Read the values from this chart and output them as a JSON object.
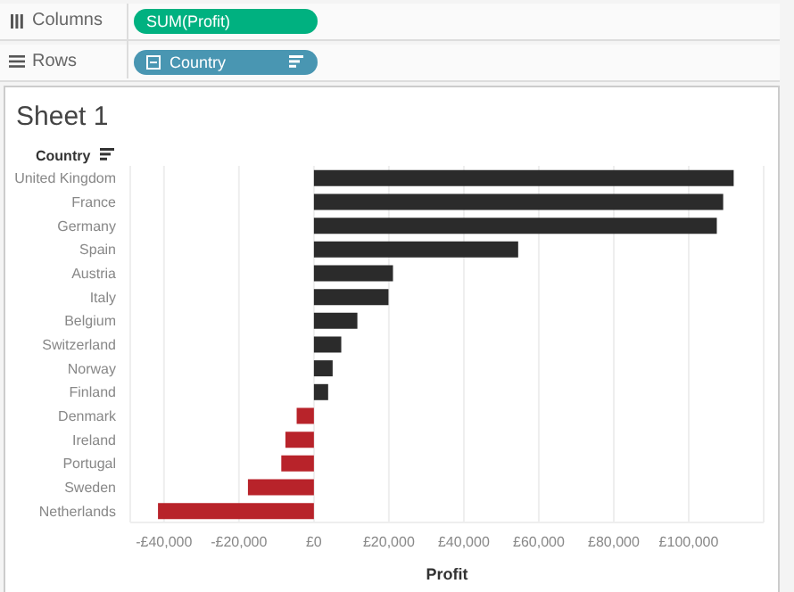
{
  "chart_data": {
    "type": "bar",
    "orientation": "horizontal",
    "title": "Sheet 1",
    "xlabel": "Profit",
    "ylabel": "Country",
    "annotations": [
      "Columns",
      "SUM(Profit)",
      "Rows",
      "Country"
    ],
    "categories": [
      "United Kingdom",
      "France",
      "Germany",
      "Spain",
      "Austria",
      "Italy",
      "Belgium",
      "Switzerland",
      "Norway",
      "Finland",
      "Denmark",
      "Ireland",
      "Portugal",
      "Sweden",
      "Netherlands"
    ],
    "values": [
      112000,
      109200,
      107500,
      54500,
      21100,
      19900,
      11600,
      7300,
      5000,
      3800,
      -4600,
      -7600,
      -8700,
      -17600,
      -41600
    ],
    "colors": [
      "#2b2b2b",
      "#2b2b2b",
      "#2b2b2b",
      "#2b2b2b",
      "#2b2b2b",
      "#2b2b2b",
      "#2b2b2b",
      "#2b2b2b",
      "#2b2b2b",
      "#2b2b2b",
      "#b8232a",
      "#b8232a",
      "#b8232a",
      "#b8232a",
      "#b8232a"
    ],
    "xlim": [
      -49000,
      120000
    ],
    "xticks": [
      {
        "value": -40000,
        "label": "-£40,000"
      },
      {
        "value": -20000,
        "label": "-£20,000"
      },
      {
        "value": 0,
        "label": "£0"
      },
      {
        "value": 20000,
        "label": "£20,000"
      },
      {
        "value": 40000,
        "label": "£40,000"
      },
      {
        "value": 60000,
        "label": "£60,000"
      },
      {
        "value": 80000,
        "label": "£80,000"
      },
      {
        "value": 100000,
        "label": "£100,000"
      }
    ],
    "grid": "x"
  }
}
